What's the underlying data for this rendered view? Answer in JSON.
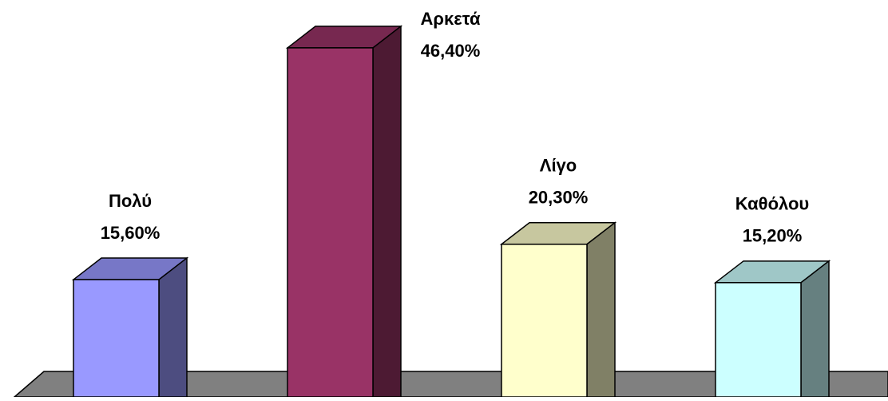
{
  "chart_data": {
    "type": "bar3d",
    "categories": [
      "Πολύ",
      "Αρκετά",
      "Λίγο",
      "Καθόλου"
    ],
    "values": [
      15.6,
      46.4,
      20.3,
      15.2
    ],
    "value_labels": [
      "15,60%",
      "46,40%",
      "20,30%",
      "15,20%"
    ],
    "colors": [
      "#9999ff",
      "#993366",
      "#ffffcc",
      "#ccffff"
    ]
  }
}
